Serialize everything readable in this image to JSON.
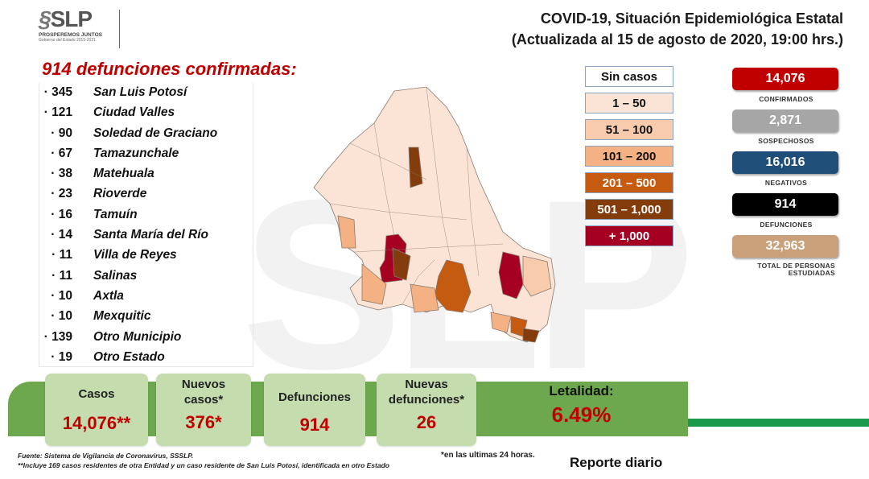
{
  "header": {
    "logo_text": "SLP",
    "logo_subtitle": "PROSPEREMOS JUNTOS",
    "logo_tagline": "Gobierno del Estado 2015-2021",
    "title_line1": "COVID-19, Situación Epidemiológica Estatal",
    "title_line2": "(Actualizada al 15 de agosto de 2020, 19:00 hrs.)"
  },
  "headline": "914 defunciones confirmadas:",
  "deaths_by_municipality": [
    {
      "count": "345",
      "name": "San Luis Potosí"
    },
    {
      "count": "121",
      "name": "Ciudad Valles"
    },
    {
      "count": "90",
      "name": "Soledad de Graciano"
    },
    {
      "count": "67",
      "name": "Tamazunchale"
    },
    {
      "count": "38",
      "name": "Matehuala"
    },
    {
      "count": "23",
      "name": "Rioverde"
    },
    {
      "count": "16",
      "name": "Tamuín"
    },
    {
      "count": "14",
      "name": "Santa María del Río"
    },
    {
      "count": "11",
      "name": "Villa de Reyes"
    },
    {
      "count": "11",
      "name": "Salinas"
    },
    {
      "count": "10",
      "name": "Axtla"
    },
    {
      "count": "10",
      "name": "Mexquitic"
    },
    {
      "count": "139",
      "name": "Otro Municipio"
    },
    {
      "count": "19",
      "name": "Otro Estado"
    }
  ],
  "legend": [
    {
      "label": "Sin casos",
      "color": "#ffffff"
    },
    {
      "label": "1 – 50",
      "color": "#fbe4d5"
    },
    {
      "label": "51 – 100",
      "color": "#f8cbad"
    },
    {
      "label": "101 – 200",
      "color": "#f4b183"
    },
    {
      "label": "201 – 500",
      "color": "#c55a11"
    },
    {
      "label": "501 – 1,000",
      "color": "#843c0c"
    },
    {
      "label": "+ 1,000",
      "color": "#a50021"
    }
  ],
  "stats": [
    {
      "value": "14,076",
      "label": "CONFIRMADOS",
      "color": "#c00000"
    },
    {
      "value": "2,871",
      "label": "SOSPECHOSOS",
      "color": "#a6a6a6"
    },
    {
      "value": "16,016",
      "label": "NEGATIVOS",
      "color": "#1f4e79"
    },
    {
      "value": "914",
      "label": "DEFUNCIONES",
      "color": "#000000"
    },
    {
      "value": "32,963",
      "label": "TOTAL DE PERSONAS ESTUDIADAS",
      "color": "#c9a07a"
    }
  ],
  "summary": {
    "casos_label": "Casos",
    "casos_value": "14,076**",
    "nuevos_casos_label": "Nuevos casos*",
    "nuevos_casos_value": "376*",
    "defunciones_label": "Defunciones",
    "defunciones_value": "914",
    "nuevas_defunciones_label": "Nuevas defunciones*",
    "nuevas_defunciones_value": "26",
    "letalidad_label": "Letalidad:",
    "letalidad_value": "6.49%"
  },
  "footer": {
    "source": "Fuente: Sistema de Vigilancia de Coronavirus, SSSLP.",
    "note": "**Incluye 169 casos residentes de otra Entidad y un caso residente de San Luis Potosí, identificada en otro Estado",
    "asterisk_note": "*en las ultimas 24 horas.",
    "report_label": "Reporte diario"
  },
  "watermark_text": "SLP"
}
